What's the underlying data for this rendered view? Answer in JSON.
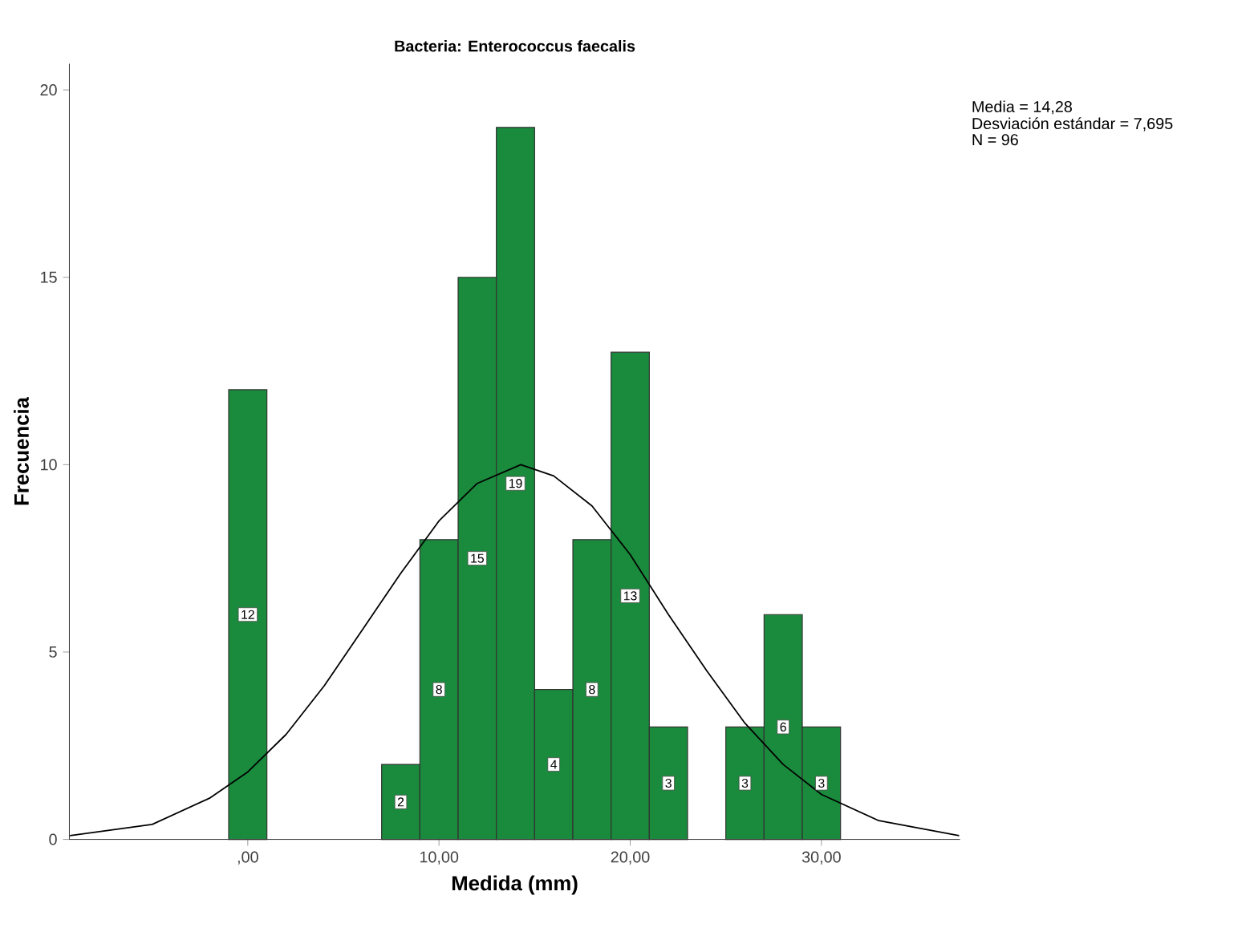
{
  "chart_data": {
    "type": "histogram",
    "title": "Bacteria: Enterococcus faecalis",
    "xlabel": "Medida (mm)",
    "ylabel": "Frecuencia",
    "bins": [
      -1,
      1,
      3,
      5,
      7,
      9,
      11,
      13,
      15,
      17,
      19,
      21,
      23,
      25,
      27,
      29,
      31
    ],
    "values": [
      12,
      0,
      0,
      0,
      2,
      8,
      15,
      19,
      4,
      8,
      13,
      3,
      0,
      3,
      6,
      3
    ],
    "value_labels": [
      "12",
      null,
      null,
      null,
      "2",
      "8",
      "15",
      "19",
      "4",
      "8",
      "13",
      "3",
      null,
      "3",
      "6",
      "3"
    ],
    "color": "#1a8a3c",
    "series": [
      {
        "type": "line",
        "color": "#000000",
        "x": [
          -9.3,
          -5,
          -2,
          0,
          2,
          4,
          6,
          8,
          10,
          12,
          14.28,
          16,
          18,
          20,
          22,
          24,
          26,
          28,
          30,
          33,
          37.2
        ],
        "values": [
          0.1,
          0.4,
          1.1,
          1.8,
          2.8,
          4.1,
          5.6,
          7.1,
          8.5,
          9.5,
          10.0,
          9.7,
          8.9,
          7.6,
          6.0,
          4.5,
          3.1,
          2.0,
          1.2,
          0.5,
          0.1
        ]
      }
    ],
    "xlim": [
      -9.33,
      37.25
    ],
    "ylim": [
      0,
      20.7
    ],
    "xticks": [
      {
        "value": 0,
        "label": ",00"
      },
      {
        "value": 10,
        "label": "10,00"
      },
      {
        "value": 20,
        "label": "20,00"
      },
      {
        "value": 30,
        "label": "30,00"
      }
    ],
    "yticks": [
      0,
      5,
      10,
      15,
      20
    ],
    "annotations": [
      "Media = 14,28",
      "Desviación estándar = 7,695",
      "N = 96"
    ]
  }
}
